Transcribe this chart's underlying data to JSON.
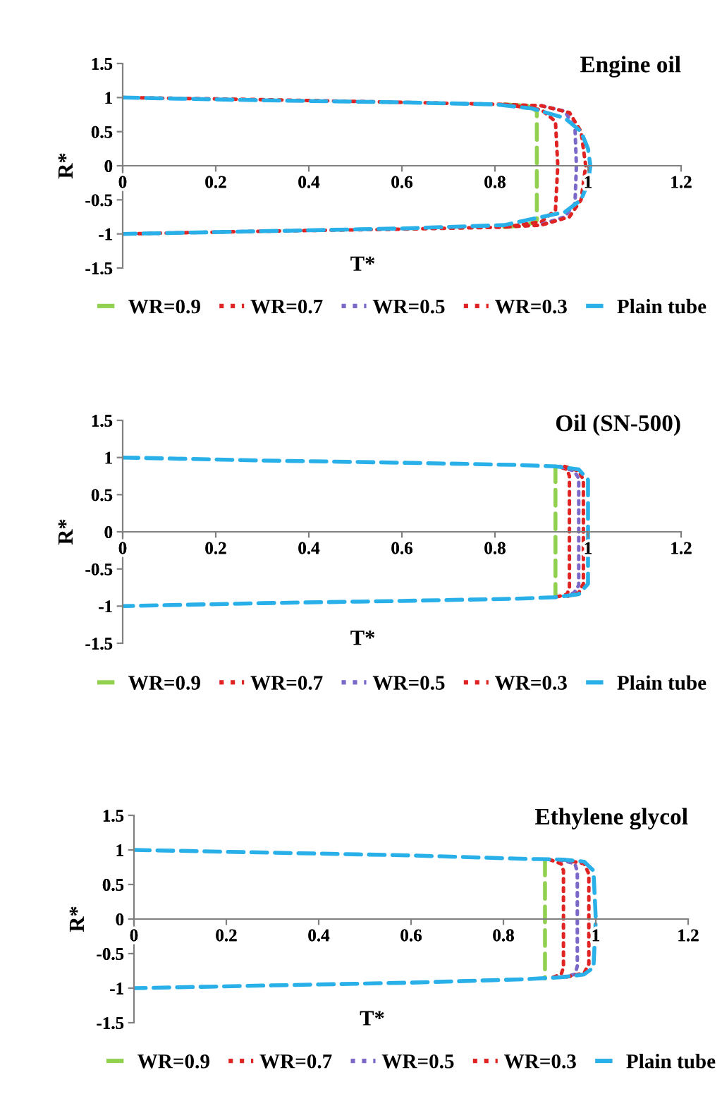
{
  "chart_data": [
    {
      "type": "line",
      "title": "Engine oil",
      "xlabel": "T*",
      "ylabel": "R*",
      "xlim": [
        0,
        1.2
      ],
      "xticks": [
        0,
        0.2,
        0.4,
        0.6,
        0.8,
        1,
        1.2
      ],
      "ylim": [
        -1.5,
        1.5
      ],
      "yticks": [
        -1.5,
        -1,
        -0.5,
        0,
        0.5,
        1,
        1.5
      ],
      "grid": false,
      "legend": "bottom",
      "marker": "none",
      "series": [
        {
          "name": "WR=0.9",
          "color": "#92d050",
          "line_style": "dashed",
          "x": [
            0.82,
            0.87,
            0.89,
            0.89,
            0.89,
            0.87,
            0.82
          ],
          "values": [
            0.9,
            0.88,
            0.8,
            0,
            -0.8,
            -0.87,
            -0.9
          ]
        },
        {
          "name": "WR=0.7",
          "color": "#e02424",
          "line_style": "dotted",
          "x": [
            0,
            0.3,
            0.6,
            0.82,
            0.9,
            0.93,
            0.935,
            0.93,
            0.9,
            0.82,
            0.6,
            0.3,
            0
          ],
          "values": [
            1,
            0.97,
            0.93,
            0.9,
            0.82,
            0.65,
            0,
            -0.65,
            -0.82,
            -0.9,
            -0.93,
            -0.96,
            -1
          ]
        },
        {
          "name": "WR=0.5",
          "color": "#7b68c8",
          "line_style": "dotted",
          "x": [
            0.9,
            0.95,
            0.972,
            0.975,
            0.972,
            0.95,
            0.9
          ],
          "values": [
            0.88,
            0.8,
            0.55,
            0,
            -0.55,
            -0.75,
            -0.86
          ]
        },
        {
          "name": "WR=0.3",
          "color": "#e02424",
          "line_style": "dotted",
          "x": [
            0.82,
            0.9,
            0.96,
            0.985,
            0.995,
            0.985,
            0.96,
            0.9,
            0.82
          ],
          "values": [
            0.9,
            0.88,
            0.78,
            0.5,
            0,
            -0.5,
            -0.75,
            -0.87,
            -0.9
          ]
        },
        {
          "name": "Plain tube",
          "color": "#2ab0e8",
          "line_style": "dashed",
          "x": [
            0,
            0.3,
            0.6,
            0.8,
            0.88,
            0.95,
            0.985,
            1.0,
            1.005,
            1.0,
            0.985,
            0.95,
            0.88,
            0.82,
            0.6,
            0.3,
            0
          ],
          "values": [
            1,
            0.96,
            0.93,
            0.9,
            0.84,
            0.7,
            0.5,
            0.25,
            0,
            -0.25,
            -0.5,
            -0.68,
            -0.78,
            -0.87,
            -0.92,
            -0.96,
            -1
          ]
        }
      ]
    },
    {
      "type": "line",
      "title": "Oil (SN-500)",
      "xlabel": "T*",
      "ylabel": "R*",
      "xlim": [
        0,
        1.2
      ],
      "xticks": [
        0,
        0.2,
        0.4,
        0.6,
        0.8,
        1,
        1.2
      ],
      "ylim": [
        -1.5,
        1.5
      ],
      "yticks": [
        -1.5,
        -1,
        -0.5,
        0,
        0.5,
        1,
        1.5
      ],
      "grid": false,
      "legend": "bottom",
      "marker": "none",
      "series": [
        {
          "name": "WR=0.9",
          "color": "#92d050",
          "line_style": "dashed",
          "x": [
            0.93,
            0.93,
            0.93
          ],
          "values": [
            0.88,
            0,
            -0.88
          ]
        },
        {
          "name": "WR=0.7",
          "color": "#e02424",
          "line_style": "dotted",
          "x": [
            0.945,
            0.955,
            0.96,
            0.96,
            0.955,
            0.93
          ],
          "values": [
            0.86,
            0.84,
            0.75,
            -0.75,
            -0.84,
            -0.88
          ]
        },
        {
          "name": "WR=0.5",
          "color": "#7b68c8",
          "line_style": "dotted",
          "x": [
            0.94,
            0.97,
            0.98,
            0.98,
            0.97,
            0.955
          ],
          "values": [
            0.88,
            0.82,
            0.72,
            -0.72,
            -0.82,
            -0.86
          ]
        },
        {
          "name": "WR=0.3",
          "color": "#e02424",
          "line_style": "dotted",
          "x": [
            0.95,
            0.98,
            0.99,
            0.99,
            0.98,
            0.95
          ],
          "values": [
            0.88,
            0.82,
            0.7,
            -0.7,
            -0.82,
            -0.88
          ]
        },
        {
          "name": "Plain tube",
          "color": "#2ab0e8",
          "line_style": "dashed",
          "x": [
            0,
            0.3,
            0.6,
            0.85,
            0.93,
            0.98,
            1.0,
            1.0,
            0.98,
            0.93,
            0.85,
            0.6,
            0.3,
            0
          ],
          "values": [
            1,
            0.96,
            0.93,
            0.9,
            0.88,
            0.84,
            0.7,
            -0.7,
            -0.84,
            -0.88,
            -0.9,
            -0.93,
            -0.96,
            -1
          ]
        }
      ]
    },
    {
      "type": "line",
      "title": "Ethylene glycol",
      "xlabel": "T*",
      "ylabel": "R*",
      "xlim": [
        0,
        1.2
      ],
      "xticks": [
        0,
        0.2,
        0.4,
        0.6,
        0.8,
        1,
        1.2
      ],
      "ylim": [
        -1.5,
        1.5
      ],
      "yticks": [
        -1.5,
        -1,
        -0.5,
        0,
        0.5,
        1,
        1.5
      ],
      "grid": false,
      "legend": "bottom",
      "marker": "none",
      "series": [
        {
          "name": "WR=0.9",
          "color": "#92d050",
          "line_style": "dashed",
          "x": [
            0.89,
            0.89,
            0.89
          ],
          "values": [
            0.86,
            0,
            -0.86
          ]
        },
        {
          "name": "WR=0.7",
          "color": "#e02424",
          "line_style": "dotted",
          "x": [
            0.9,
            0.925,
            0.93,
            0.93,
            0.925,
            0.9
          ],
          "values": [
            0.86,
            0.8,
            0.7,
            -0.7,
            -0.8,
            -0.86
          ]
        },
        {
          "name": "WR=0.5",
          "color": "#7b68c8",
          "line_style": "dotted",
          "x": [
            0.92,
            0.955,
            0.96,
            0.96,
            0.955,
            0.92
          ],
          "values": [
            0.86,
            0.8,
            0.68,
            -0.68,
            -0.8,
            -0.85
          ]
        },
        {
          "name": "WR=0.3",
          "color": "#e02424",
          "line_style": "dotted",
          "x": [
            0.93,
            0.975,
            0.985,
            0.985,
            0.975,
            0.93
          ],
          "values": [
            0.86,
            0.8,
            0.65,
            -0.65,
            -0.78,
            -0.85
          ]
        },
        {
          "name": "Plain tube",
          "color": "#2ab0e8",
          "line_style": "dashed",
          "x": [
            0,
            0.3,
            0.6,
            0.85,
            0.93,
            0.975,
            0.995,
            1.0,
            0.995,
            0.975,
            0.93,
            0.85,
            0.6,
            0.3,
            0
          ],
          "values": [
            1,
            0.96,
            0.92,
            0.87,
            0.86,
            0.83,
            0.7,
            0,
            -0.7,
            -0.8,
            -0.84,
            -0.87,
            -0.92,
            -0.96,
            -1
          ]
        }
      ]
    }
  ]
}
